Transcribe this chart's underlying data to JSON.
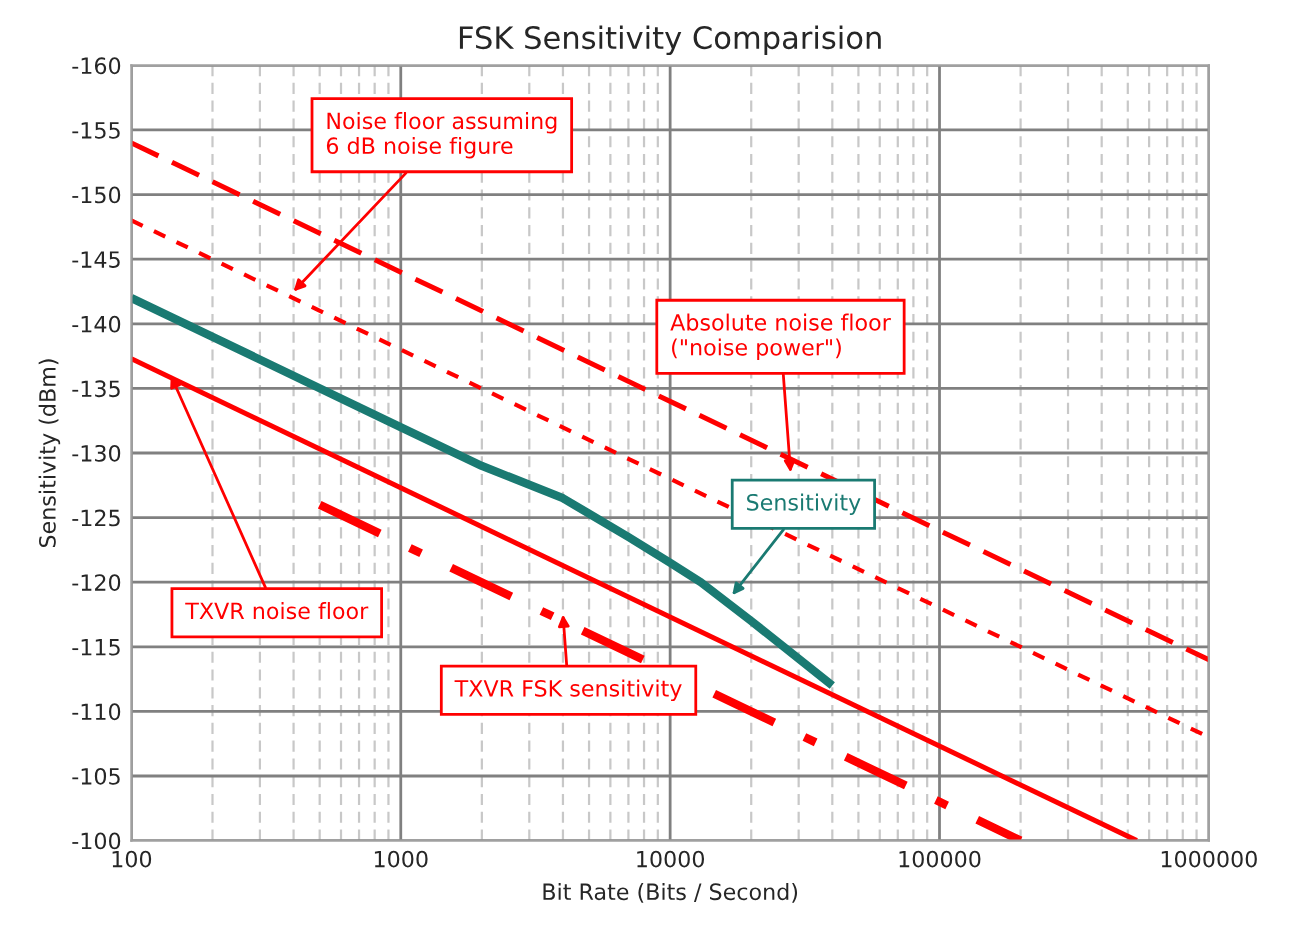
{
  "chart_data": {
    "type": "line",
    "title": "FSK Sensitivity Comparision",
    "xlabel": "Bit Rate (Bits / Second)",
    "ylabel": "Sensitivity (dBm)",
    "log": "x",
    "xlim": [
      100,
      1000000
    ],
    "xticks": [
      100,
      1000,
      10000,
      100000,
      1000000
    ],
    "ylim": [
      -100,
      -160
    ],
    "yticks": [
      -160,
      -155,
      -150,
      -145,
      -140,
      -135,
      -130,
      -125,
      -120,
      -115,
      -110,
      -105,
      -100
    ],
    "grid": true,
    "marker": "none",
    "series": [
      {
        "color": "#ff0000",
        "line_style": "dashed",
        "x": [
          100,
          1000000
        ],
        "values": [
          -154,
          -114
        ]
      },
      {
        "color": "#ff0000",
        "line_style": "dashed",
        "x": [
          100,
          1000000
        ],
        "values": [
          -148,
          -108
        ]
      },
      {
        "color": "#1a7a72",
        "line_style": "solid",
        "x": [
          100,
          1000,
          2000,
          4000,
          7000,
          10000,
          13000,
          20000,
          40000
        ],
        "values": [
          -142,
          -132,
          -129,
          -126.5,
          -123.5,
          -121.5,
          -120,
          -117,
          -112
        ]
      },
      {
        "color": "#ff0000",
        "line_style": "solid",
        "x": [
          100,
          540000
        ],
        "values": [
          -137.3,
          -100
        ]
      },
      {
        "color": "#ff0000",
        "line_style": "dotted",
        "x": [
          500,
          200000
        ],
        "values": [
          -126,
          -100
        ]
      }
    ],
    "annotations": [
      {
        "text": "Noise floor assuming\n6 dB noise figure",
        "x": 400,
        "y": -142.5
      },
      {
        "text": "Absolute noise floor\n(\"noise power\")",
        "x": 28000,
        "y": -128.5
      },
      {
        "text": "Sensitivity",
        "x": 17000,
        "y": -119
      },
      {
        "text": "TXVR noise floor",
        "x": 140,
        "y": -136
      },
      {
        "text": "TXVR FSK sensitivity",
        "x": 4000,
        "y": -117.5
      }
    ]
  }
}
